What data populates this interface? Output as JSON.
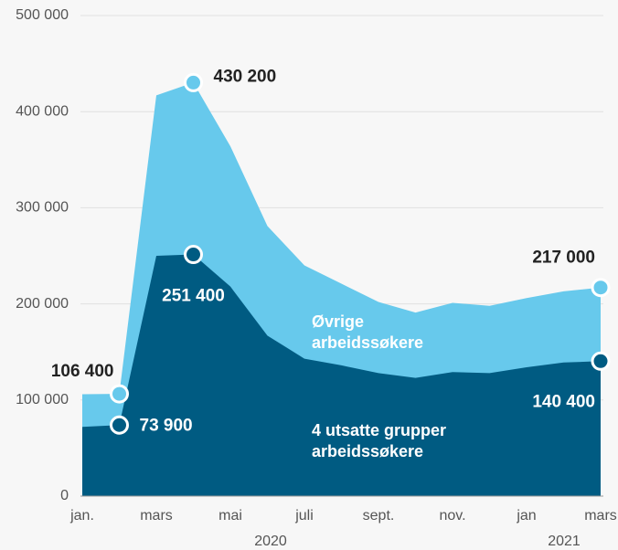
{
  "chart_data": {
    "type": "area",
    "categories": [
      "jan.",
      null,
      "mars",
      null,
      "mai",
      null,
      "juli",
      null,
      "sept.",
      null,
      "nov.",
      null,
      "jan",
      null,
      "mars"
    ],
    "year_labels": [
      "2020",
      "2021"
    ],
    "series": [
      {
        "name": "Øvrige arbeidssøkere",
        "color": "#67c9ec",
        "values": [
          106000,
          106400,
          417000,
          430200,
          364000,
          281000,
          240000,
          221000,
          202000,
          191000,
          201000,
          198000,
          206000,
          213000,
          217000
        ],
        "value_labels": [
          null,
          "106 400",
          null,
          "430 200",
          null,
          null,
          null,
          null,
          null,
          null,
          null,
          null,
          null,
          null,
          "217 000"
        ]
      },
      {
        "name": "4 utsatte grupper arbeidssøkere",
        "color": "#005b82",
        "values": [
          72000,
          73900,
          250000,
          251400,
          218000,
          167000,
          143000,
          136000,
          128000,
          123000,
          129000,
          128000,
          134000,
          139000,
          140400
        ],
        "value_labels": [
          null,
          "73 900",
          null,
          "251 400",
          null,
          null,
          null,
          null,
          null,
          null,
          null,
          null,
          null,
          null,
          "140 400"
        ]
      }
    ],
    "ylim": [
      0,
      500000
    ],
    "yticks": [
      0,
      {
        "value": 100000,
        "label": "100 000"
      },
      {
        "value": 200000,
        "label": "200 000"
      },
      {
        "value": 300000,
        "label": "300 000"
      },
      {
        "value": 400000,
        "label": "400 000"
      },
      {
        "value": 500000,
        "label": "500 000"
      }
    ],
    "grid": true
  }
}
